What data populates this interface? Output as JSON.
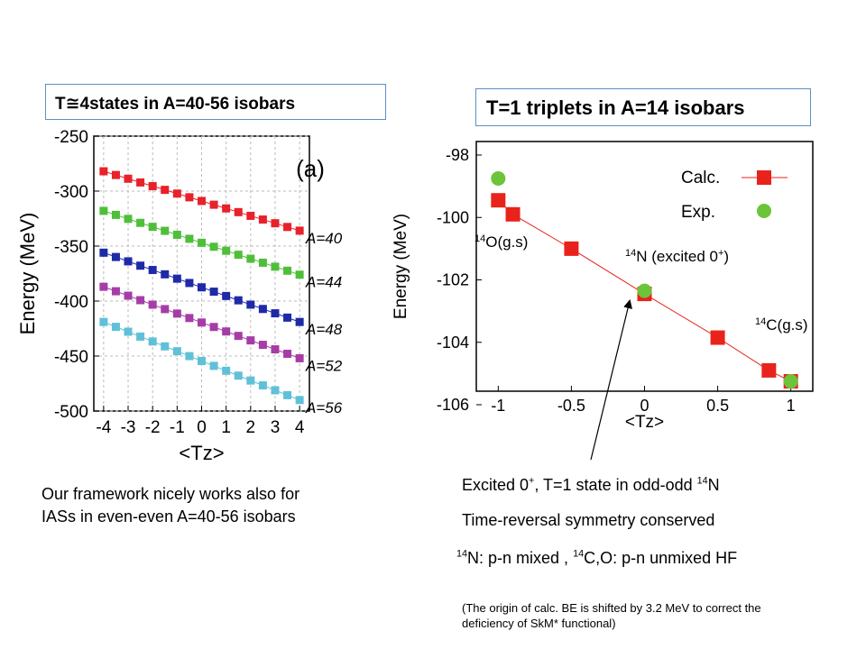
{
  "left_title": "T≅4states in A=40-56 isobars",
  "right_title": "T=1 triplets in A=14 isobars",
  "left_caption": [
    "Our framework nicely works also for",
    "IASs in even-even A=40-56 isobars"
  ],
  "right_text": {
    "line1_pre": "Excited 0",
    "line1_sup": "+",
    "line1_mid": ", T=1 state in odd-odd ",
    "line1_sup2": "14",
    "line1_post": "N",
    "line2": "Time-reversal symmetry conserved",
    "line3_sup1": "14",
    "line3_a": "N: p-n mixed , ",
    "line3_sup2": "14",
    "line3_b": "C,O: p-n unmixed HF",
    "note": [
      "(The origin of calc. BE is shifted by 3.2 MeV to correct the",
      "deficiency of SkM* functional)"
    ]
  },
  "chart_data": [
    {
      "type": "scatter",
      "panel_label": "(a)",
      "xlabel": "<Tz>",
      "ylabel": "Energy (MeV)",
      "xlim": [
        -4.4,
        4.4
      ],
      "ylim": [
        -500,
        -250
      ],
      "xticks": [
        -4,
        -3,
        -2,
        -1,
        0,
        1,
        2,
        3,
        4
      ],
      "yticks": [
        -250,
        -300,
        -350,
        -400,
        -450,
        -500
      ],
      "grid": true,
      "x": [
        -4,
        -3.5,
        -3,
        -2.5,
        -2,
        -1.5,
        -1,
        -0.5,
        0,
        0.5,
        1,
        1.5,
        2,
        2.5,
        3,
        3.5,
        4
      ],
      "series": [
        {
          "name": "A=40",
          "color": "#e8212a",
          "y_start": -282,
          "y_end": -336
        },
        {
          "name": "A=44",
          "color": "#4fbf3a",
          "y_start": -318,
          "y_end": -376
        },
        {
          "name": "A=48",
          "color": "#1f2aa8",
          "y_start": -356,
          "y_end": -419
        },
        {
          "name": "A=52",
          "color": "#a63da7",
          "y_start": -387,
          "y_end": -452
        },
        {
          "name": "A=56",
          "color": "#5fc1d8",
          "y_start": -419,
          "y_end": -490
        }
      ]
    },
    {
      "type": "scatter",
      "xlabel": "<Tz>",
      "ylabel": "Energy (MeV)",
      "xlim": [
        -1.15,
        1.15
      ],
      "ylim": [
        -106,
        -98
      ],
      "xticks": [
        -1,
        -0.5,
        0,
        0.5,
        1
      ],
      "yticks": [
        -98,
        -100,
        -102,
        -104,
        -106
      ],
      "legend_position": "top-right",
      "series": [
        {
          "name": "Calc.",
          "color": "#e8231c",
          "marker": "square",
          "line": true,
          "x": [
            -1,
            -0.9,
            -0.5,
            0,
            0.5,
            0.85,
            1
          ],
          "y": [
            -99.45,
            -99.9,
            -101.0,
            -102.45,
            -103.85,
            -104.9,
            -105.25
          ]
        },
        {
          "name": "Exp.",
          "color": "#6cc43a",
          "marker": "circle",
          "line": false,
          "x": [
            -1,
            0,
            1
          ],
          "y": [
            -98.75,
            -102.35,
            -105.25
          ]
        }
      ],
      "annotations": [
        {
          "sup": "14",
          "text": "O(g.s)"
        },
        {
          "sup": "14",
          "text": "N (excited 0",
          "sup_post": "+",
          "close": ")"
        },
        {
          "sup": "14",
          "text": "C(g.s)"
        }
      ]
    }
  ]
}
